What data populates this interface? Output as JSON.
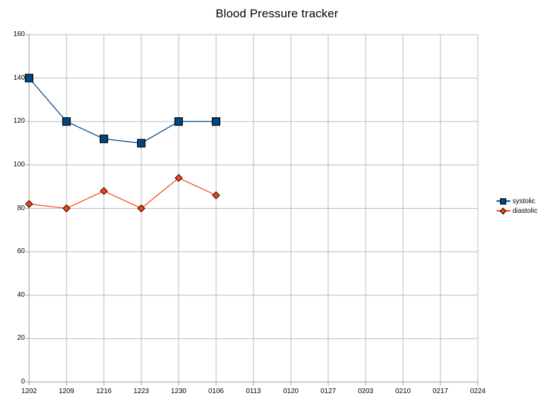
{
  "chart_data": {
    "type": "line",
    "title": "Blood Pressure tracker",
    "categories": [
      "1202",
      "1209",
      "1216",
      "1223",
      "1230",
      "0106",
      "0113",
      "0120",
      "0127",
      "0203",
      "0210",
      "0217",
      "0224"
    ],
    "series": [
      {
        "name": "systolic",
        "marker": "square",
        "color": "#004586",
        "values": [
          140,
          120,
          112,
          110,
          120,
          120
        ]
      },
      {
        "name": "diastolic",
        "marker": "diamond",
        "color": "#ff420e",
        "values": [
          82,
          80,
          88,
          80,
          94,
          86
        ]
      }
    ],
    "xlabel": "",
    "ylabel": "",
    "ylim": [
      0,
      160
    ],
    "yticks": [
      0,
      20,
      40,
      60,
      80,
      100,
      120,
      140,
      160
    ],
    "grid": true,
    "legend_position": "right",
    "colors": {
      "background": "#ffffff",
      "gridline": "#b8b8b8",
      "axis": "#9a9a9a",
      "text": "#000000",
      "marker_border": "#000000"
    }
  }
}
